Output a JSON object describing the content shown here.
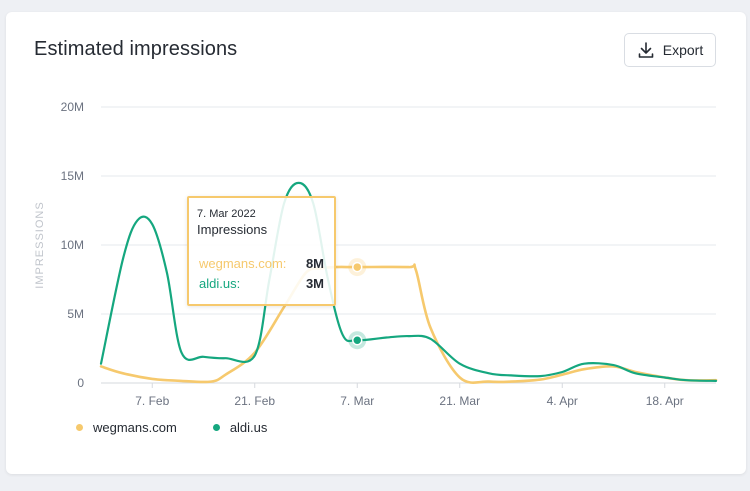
{
  "card": {
    "title": "Estimated impressions",
    "export_label": "Export"
  },
  "colors": {
    "wegmans": "#f6c96d",
    "aldi": "#15a77f",
    "grid": "#e6e8ec"
  },
  "tooltip": {
    "date": "7. Mar 2022",
    "metric": "Impressions",
    "rows": [
      {
        "name": "wegmans.com:",
        "value": "8M"
      },
      {
        "name": "aldi.us:",
        "value": "3M"
      }
    ]
  },
  "legend": [
    {
      "label": "wegmans.com"
    },
    {
      "label": "aldi.us"
    }
  ],
  "chart_data": {
    "type": "line",
    "ylabel": "IMPRESSIONS",
    "xlabel": "",
    "ylim": [
      0,
      20
    ],
    "y_ticks": [
      "0",
      "5M",
      "10M",
      "15M",
      "20M"
    ],
    "y_tick_values": [
      0,
      5,
      10,
      15,
      20
    ],
    "x_ticks": [
      "7. Feb",
      "21. Feb",
      "7. Mar",
      "21. Mar",
      "4. Apr",
      "18. Apr"
    ],
    "x_tick_dates": [
      "2022-02-07",
      "2022-02-21",
      "2022-03-07",
      "2022-03-21",
      "2022-04-04",
      "2022-04-18"
    ],
    "grid": true,
    "legend_position": "bottom-left",
    "highlight_date": "2022-03-07",
    "series": [
      {
        "name": "wegmans.com",
        "dates": [
          "2022-01-31",
          "2022-02-03",
          "2022-02-07",
          "2022-02-11",
          "2022-02-15",
          "2022-02-17",
          "2022-02-21",
          "2022-02-25",
          "2022-02-28",
          "2022-03-02",
          "2022-03-04",
          "2022-03-07",
          "2022-03-14",
          "2022-03-15",
          "2022-03-17",
          "2022-03-21",
          "2022-03-25",
          "2022-03-28",
          "2022-04-01",
          "2022-04-04",
          "2022-04-07",
          "2022-04-11",
          "2022-04-14",
          "2022-04-18",
          "2022-04-21",
          "2022-04-25"
        ],
        "values": [
          1.2,
          0.7,
          0.3,
          0.15,
          0.1,
          0.6,
          2.2,
          5.5,
          8.0,
          8.3,
          8.4,
          8.4,
          8.4,
          8.2,
          4.0,
          0.4,
          0.1,
          0.1,
          0.25,
          0.6,
          1.0,
          1.2,
          0.8,
          0.4,
          0.2,
          0.2
        ]
      },
      {
        "name": "aldi.us",
        "dates": [
          "2022-01-31",
          "2022-02-03",
          "2022-02-05",
          "2022-02-07",
          "2022-02-09",
          "2022-02-11",
          "2022-02-14",
          "2022-02-17",
          "2022-02-21",
          "2022-02-23",
          "2022-02-25",
          "2022-02-27",
          "2022-03-01",
          "2022-03-03",
          "2022-03-05",
          "2022-03-07",
          "2022-03-11",
          "2022-03-14",
          "2022-03-17",
          "2022-03-21",
          "2022-03-25",
          "2022-03-28",
          "2022-04-01",
          "2022-04-04",
          "2022-04-07",
          "2022-04-11",
          "2022-04-14",
          "2022-04-18",
          "2022-04-21",
          "2022-04-25"
        ],
        "values": [
          1.4,
          9.0,
          11.8,
          11.5,
          8.0,
          2.2,
          1.9,
          1.8,
          2.0,
          7.5,
          13.0,
          14.5,
          13.0,
          7.5,
          3.5,
          3.1,
          3.3,
          3.4,
          3.2,
          1.4,
          0.7,
          0.55,
          0.5,
          0.8,
          1.4,
          1.3,
          0.7,
          0.4,
          0.2,
          0.15
        ]
      }
    ]
  }
}
